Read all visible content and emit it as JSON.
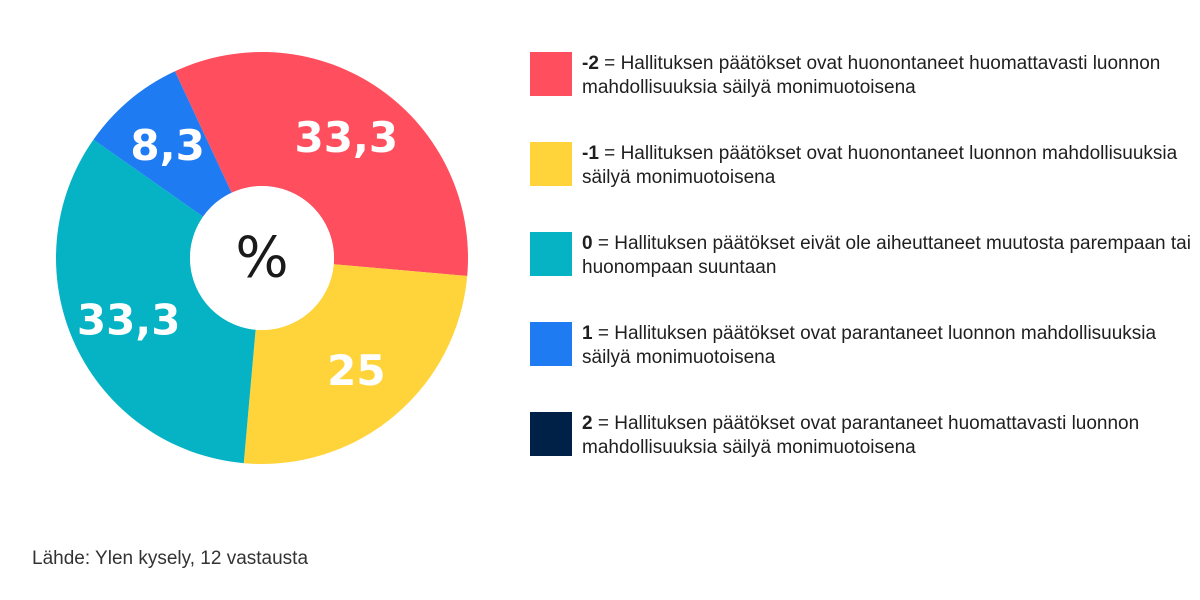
{
  "chart_data": {
    "type": "pie",
    "donut": true,
    "center_label": "%",
    "slices": [
      {
        "code": "-2",
        "value": 33.3,
        "display": "33,3",
        "color": "#FF4F5E",
        "legend_text": "Hallituksen päätökset ovat huonontaneet huomattavasti luonnon mahdollisuuksia säilyä monimuotoisena"
      },
      {
        "code": "-1",
        "value": 25,
        "display": "25",
        "color": "#FFD43B",
        "legend_text": "Hallituksen päätökset ovat huonontaneet luonnon mahdollisuuksia säilyä monimuotoisena"
      },
      {
        "code": "0",
        "value": 33.3,
        "display": "33,3",
        "color": "#05B3C4",
        "legend_text": "Hallituksen päätökset eivät ole aiheuttaneet muutosta parempaan tai huonompaan suuntaan"
      },
      {
        "code": "1",
        "value": 8.3,
        "display": "8,3",
        "color": "#1E7BF2",
        "legend_text": "Hallituksen päätökset ovat parantaneet luonnon mahdollisuuksia säilyä monimuotoisena"
      },
      {
        "code": "2",
        "value": 0,
        "display": "",
        "color": "#002147",
        "legend_text": "Hallituksen päätökset ovat parantaneet huomattavasti luonnon mahdollisuuksia säilyä monimuotoisena"
      }
    ],
    "legend_position": "right"
  },
  "source": "Lähde: Ylen kysely, 12 vastausta"
}
